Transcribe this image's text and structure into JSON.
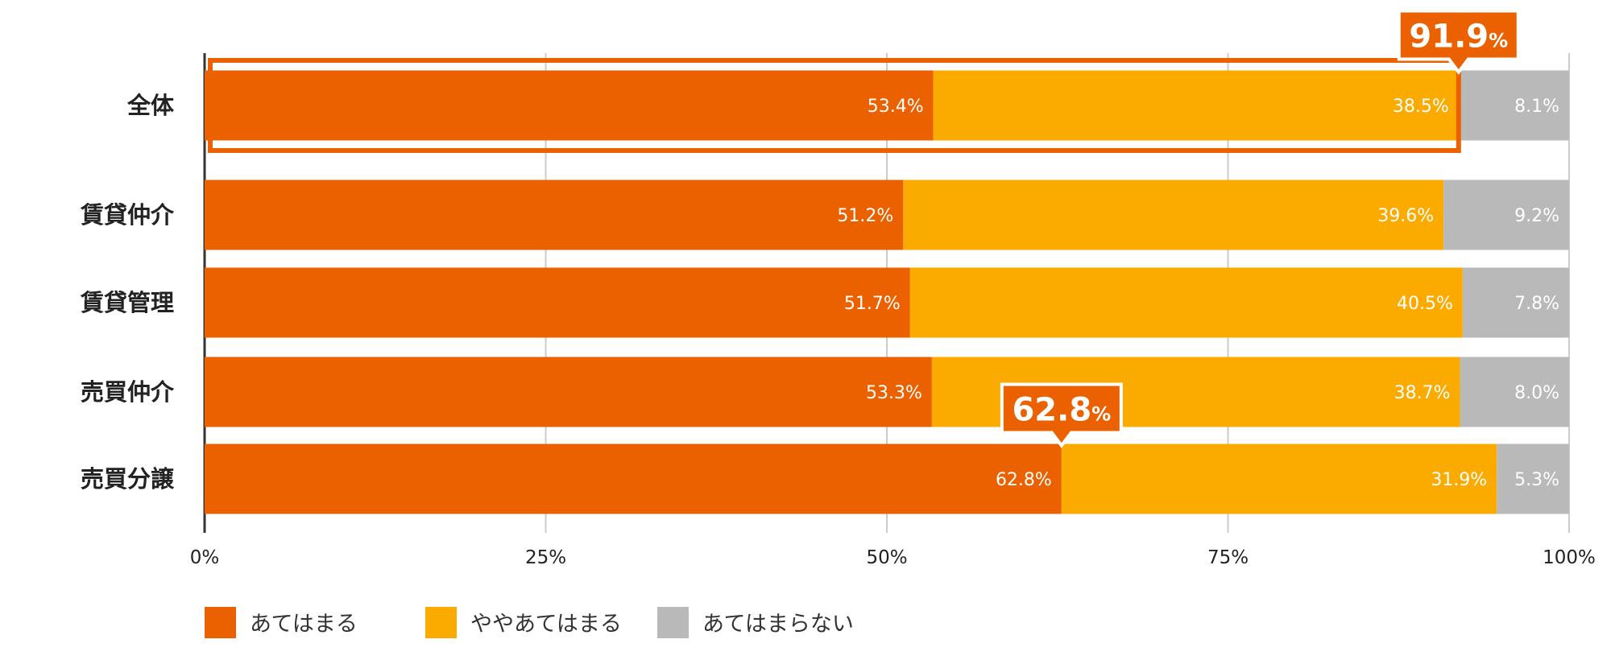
{
  "chart_data": {
    "type": "bar",
    "orientation": "horizontal",
    "stacked": true,
    "categories": [
      "全体",
      "賃貸仲介",
      "賃貸管理",
      "売買仲介",
      "売買分譲"
    ],
    "series": [
      {
        "name": "あてはまる",
        "color": "#EB6100",
        "values": [
          53.4,
          51.2,
          51.7,
          53.3,
          62.8
        ],
        "labels": [
          "53.4%",
          "51.2%",
          "51.7%",
          "53.3%",
          "62.8%"
        ]
      },
      {
        "name": "ややあてはまる",
        "color": "#FBAA00",
        "values": [
          38.5,
          39.6,
          40.5,
          38.7,
          31.9
        ],
        "labels": [
          "38.5%",
          "39.6%",
          "40.5%",
          "38.7%",
          "31.9%"
        ]
      },
      {
        "name": "あてはまらない",
        "color": "#B9B9B9",
        "values": [
          8.1,
          9.2,
          7.8,
          8.0,
          5.3
        ],
        "labels": [
          "8.1%",
          "9.2%",
          "7.8%",
          "8.0%",
          "5.3%"
        ]
      }
    ],
    "xlim": [
      0,
      100
    ],
    "xticks": [
      0,
      25,
      50,
      75,
      100
    ],
    "xtick_labels": [
      "0%",
      "25%",
      "50%",
      "75%",
      "100%"
    ],
    "grid": true,
    "legend_position": "bottom-left",
    "callouts": [
      {
        "category_index": 0,
        "value": 91.9,
        "number": "91.9",
        "unit": "%",
        "highlight_frame": true
      },
      {
        "category_index": 4,
        "value": 62.8,
        "number": "62.8",
        "unit": "%",
        "highlight_frame": false
      }
    ],
    "colors": {
      "accent": "#EB6100",
      "grid": "#CCCCCC",
      "axis": "#333333",
      "label_light": "#ffffff"
    }
  }
}
